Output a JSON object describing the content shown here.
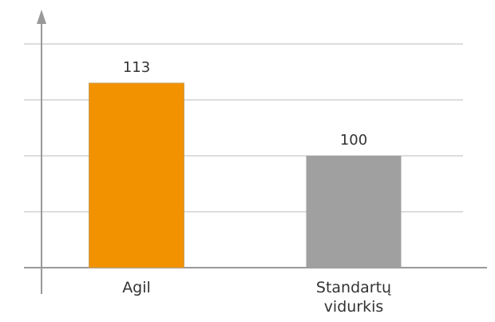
{
  "chart_data": {
    "type": "bar",
    "categories": [
      "Agil",
      "Standartų vidurkis"
    ],
    "values": [
      113,
      100
    ],
    "colors": [
      "#f39200",
      "#a0a0a0"
    ],
    "ylim": [
      80,
      120
    ],
    "yticks": [
      80,
      90,
      100,
      110,
      120
    ],
    "grid": true
  }
}
